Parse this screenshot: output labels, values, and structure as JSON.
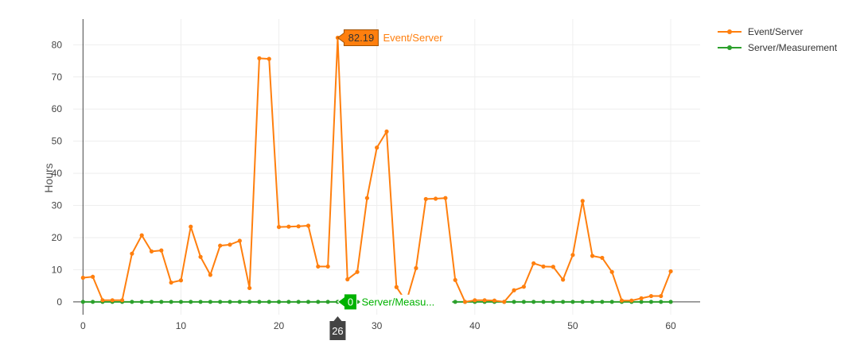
{
  "chart_data": {
    "type": "line",
    "ylabel": "Hours",
    "xlim": [
      -1,
      63
    ],
    "ylim": [
      -4,
      88
    ],
    "x_ticks": [
      0,
      10,
      20,
      30,
      40,
      50,
      60
    ],
    "y_ticks": [
      0,
      10,
      20,
      30,
      40,
      50,
      60,
      70,
      80
    ],
    "grid": true,
    "legend_position": "top-right",
    "x": [
      0,
      1,
      2,
      3,
      4,
      5,
      6,
      7,
      8,
      9,
      10,
      11,
      12,
      13,
      14,
      15,
      16,
      17,
      18,
      19,
      20,
      21,
      22,
      23,
      24,
      25,
      26,
      27,
      28,
      29,
      30,
      31,
      32,
      33,
      34,
      35,
      36,
      37,
      38,
      39,
      40,
      41,
      42,
      43,
      44,
      45,
      46,
      47,
      48,
      49,
      50,
      51,
      52,
      53,
      54,
      55,
      56,
      57,
      58,
      59,
      60
    ],
    "series": [
      {
        "name": "Event/Server",
        "color": "#ff7f0e",
        "values": [
          7.5,
          7.8,
          0.5,
          0.5,
          0.5,
          15,
          20.7,
          15.7,
          16,
          6,
          6.7,
          23.4,
          14,
          8.4,
          17.5,
          17.8,
          19,
          4.3,
          75.8,
          75.6,
          23.3,
          23.4,
          23.5,
          23.7,
          11,
          11,
          82.19,
          7,
          9.3,
          32.3,
          48,
          53,
          4.6,
          0,
          10.5,
          32,
          32.1,
          32.3,
          6.8,
          0,
          0.5,
          0.5,
          0.4,
          0,
          3.6,
          4.7,
          12,
          11,
          10.9,
          6.9,
          14.6,
          31.4,
          14.3,
          13.7,
          9.3,
          0.4,
          0.4,
          1.1,
          1.8,
          1.8,
          9.5
        ]
      },
      {
        "name": "Server/Measurement",
        "color": "#2ca02c",
        "values": [
          0,
          0,
          0,
          0,
          0,
          0,
          0,
          0,
          0,
          0,
          0,
          0,
          0,
          0,
          0,
          0,
          0,
          0,
          0,
          0,
          0,
          0,
          0,
          0,
          0,
          0,
          0,
          0,
          0,
          0,
          0,
          0,
          0,
          0,
          0,
          0,
          0,
          0,
          0,
          0,
          0,
          0,
          0,
          0,
          0,
          0,
          0,
          0,
          0,
          0,
          0,
          0,
          0,
          0,
          0,
          0,
          0,
          0,
          0,
          0,
          0
        ]
      }
    ],
    "hover": {
      "x_label": "26",
      "points": [
        {
          "series": "Event/Server",
          "value_text": "82.19",
          "name_text": "Event/Server"
        },
        {
          "series": "Server/Measurement",
          "value_text": "0",
          "name_text": "Server/Measu..."
        }
      ]
    }
  }
}
